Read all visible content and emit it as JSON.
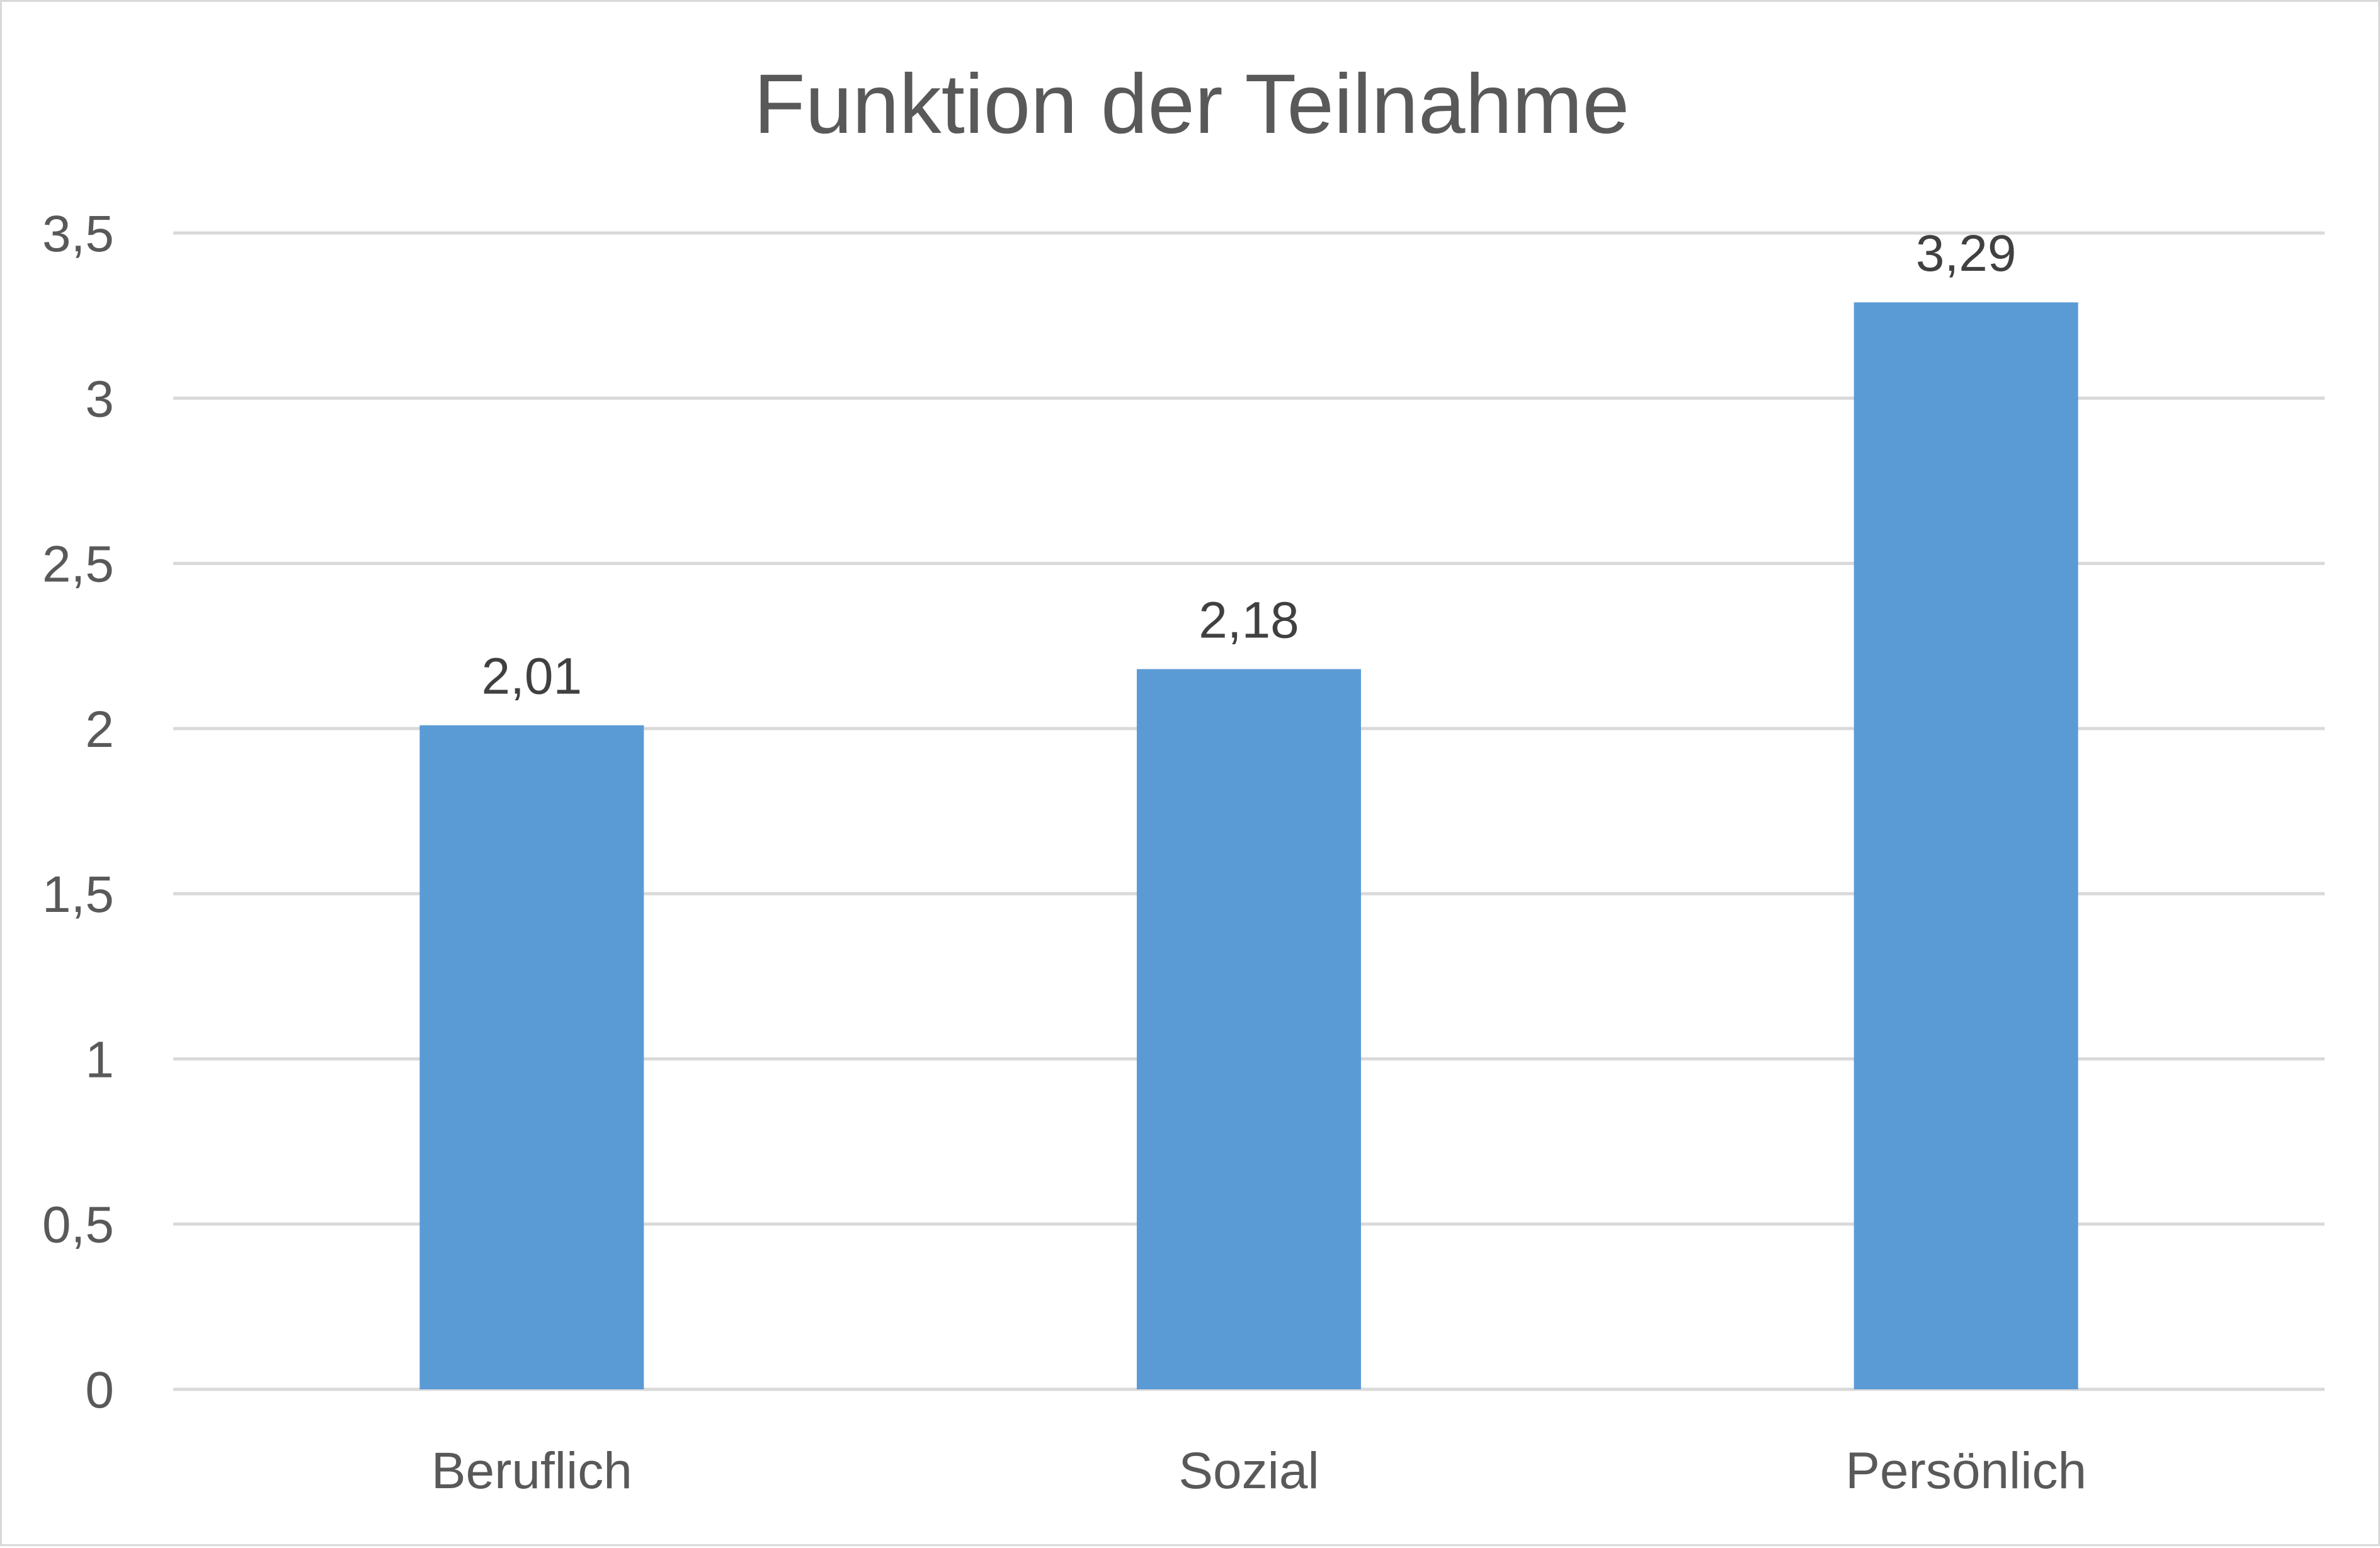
{
  "chart_data": {
    "type": "bar",
    "title": "Funktion der Teilnahme",
    "categories": [
      "Beruflich",
      "Sozial",
      "Persönlich"
    ],
    "values": [
      2.01,
      2.18,
      3.29
    ],
    "data_labels": [
      "2,01",
      "2,18",
      "3,29"
    ],
    "ylim": [
      0,
      3.5
    ],
    "yticks": [
      0,
      0.5,
      1,
      1.5,
      2,
      2.5,
      3,
      3.5
    ],
    "ytick_labels": [
      "0",
      "0,5",
      "1",
      "1,5",
      "2",
      "2,5",
      "3",
      "3,5"
    ],
    "xlabel": "",
    "ylabel": "",
    "grid": true,
    "legend": "none",
    "bar_color": "#5b9bd5",
    "gridline_color": "#d9d9d9",
    "text_color": "#595959"
  }
}
